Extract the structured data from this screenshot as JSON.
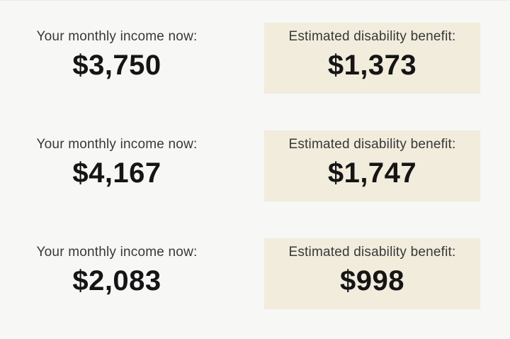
{
  "theme": {
    "page_bg": "#f7f7f6",
    "card_bg": "#f1ecdc",
    "label_color": "#383838",
    "amount_color": "#151515"
  },
  "rows": [
    {
      "income_label": "Your monthly income now:",
      "income_value": "$3,750",
      "benefit_label": "Estimated disability benefit:",
      "benefit_value": "$1,373"
    },
    {
      "income_label": "Your monthly income now:",
      "income_value": "$4,167",
      "benefit_label": "Estimated disability benefit:",
      "benefit_value": "$1,747"
    },
    {
      "income_label": "Your monthly income now:",
      "income_value": "$2,083",
      "benefit_label": "Estimated disability benefit:",
      "benefit_value": "$998"
    }
  ]
}
